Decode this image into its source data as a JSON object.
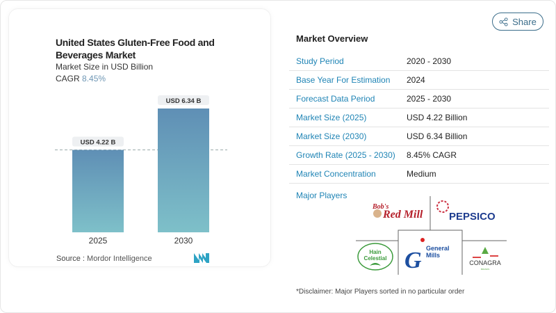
{
  "chart_data": {
    "type": "bar",
    "title": "United States Gluten-Free Food and Beverages Market",
    "subtitle": "Market Size in USD Billion",
    "cagr_label": "CAGR",
    "cagr_value": "8.45%",
    "categories": [
      "2025",
      "2030"
    ],
    "values": [
      4.22,
      6.34
    ],
    "data_labels": [
      "USD 4.22 B",
      "USD 6.34 B"
    ],
    "ylim": [
      0,
      6.34
    ],
    "grid": false,
    "colors": {
      "bar_top": "#5f8fb5",
      "bar_bottom": "#7ec0c9"
    }
  },
  "source": {
    "label": "Source :",
    "value": "Mordor Intelligence"
  },
  "share_label": "Share",
  "overview": {
    "title": "Market Overview",
    "rows": [
      {
        "k": "Study Period",
        "v": "2020 - 2030"
      },
      {
        "k": "Base Year For Estimation",
        "v": "2024"
      },
      {
        "k": "Forecast Data Period",
        "v": "2025 - 2030"
      },
      {
        "k": "Market Size (2025)",
        "v": "USD 4.22 Billion"
      },
      {
        "k": "Market Size (2030)",
        "v": "USD 6.34 Billion"
      },
      {
        "k": "Growth Rate (2025 - 2030)",
        "v": "8.45% CAGR"
      },
      {
        "k": "Market Concentration",
        "v": "Medium"
      }
    ],
    "major_players_label": "Major Players",
    "players": [
      "Bob's Red Mill",
      "PepsiCo",
      "Hain Celestial",
      "General Mills",
      "Conagra Brands"
    ],
    "disclaimer": "*Disclaimer: Major Players sorted in no particular order"
  }
}
